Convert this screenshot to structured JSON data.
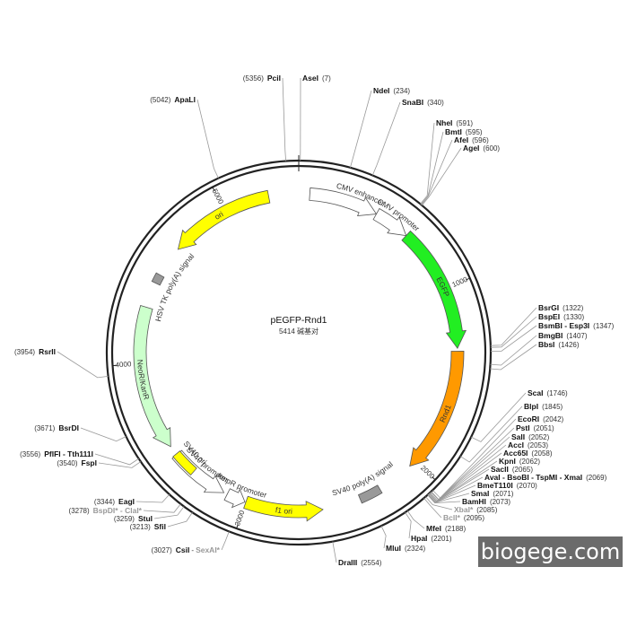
{
  "plasmid": {
    "name": "pEGFP-Rnd1",
    "size_text": "5414 碱基对",
    "total_bp": 5414
  },
  "watermark": "biogege.com",
  "colors": {
    "ori": "#ffff00",
    "egfp": "#22ee22",
    "rnd1": "#ff9900",
    "neo": "#ccffcc",
    "grey_box": "#999999",
    "promoter": "#ffffff",
    "ring": "#222222",
    "dim_site": "#999999"
  },
  "ring_ticks": [
    {
      "label": "1000",
      "bp": 1000
    },
    {
      "label": "2000",
      "bp": 2000
    },
    {
      "label": "3000",
      "bp": 3000
    },
    {
      "label": "4000",
      "bp": 4000
    },
    {
      "label": "5000",
      "bp": 5000
    }
  ],
  "features": [
    {
      "id": "cmv-enhancer",
      "label": "CMV enhancer",
      "start": 60,
      "end": 440,
      "direction": "cw",
      "kind": "open-arrow",
      "color": "#ffffff"
    },
    {
      "id": "cmv-promoter",
      "label": "CMV promoter",
      "start": 440,
      "end": 640,
      "direction": "cw",
      "kind": "open-arrow",
      "color": "#ffffff"
    },
    {
      "id": "egfp",
      "label": "EGFP",
      "start": 640,
      "end": 1330,
      "direction": "cw",
      "kind": "arrow",
      "color": "#22ee22"
    },
    {
      "id": "rnd1",
      "label": "Rnd1",
      "start": 1346,
      "end": 2040,
      "direction": "cw",
      "kind": "arrow",
      "color": "#ff9900"
    },
    {
      "id": "sv40-polya",
      "label": "SV40 poly(A) signal",
      "start": 2245,
      "end": 2365,
      "direction": "none",
      "kind": "box",
      "color": "#999999"
    },
    {
      "id": "f1-ori",
      "label": "f1 ori",
      "start": 2575,
      "end": 3000,
      "direction": "ccw",
      "kind": "arrow",
      "color": "#ffff00"
    },
    {
      "id": "ampr-promoter",
      "label": "AmpR promoter",
      "start": 3005,
      "end": 3110,
      "direction": "ccw",
      "kind": "open-arrow",
      "color": "#ffffff"
    },
    {
      "id": "sv40-promoter",
      "label": "SV40 promoter",
      "start": 3130,
      "end": 3460,
      "direction": "ccw",
      "kind": "open-arrow",
      "color": "#ffffff"
    },
    {
      "id": "sv40-ori",
      "label": "SV40 ori",
      "start": 3330,
      "end": 3465,
      "direction": "none",
      "kind": "box",
      "color": "#ffff00"
    },
    {
      "id": "neor",
      "label": "NeoR/KanR",
      "start": 3515,
      "end": 4310,
      "direction": "ccw",
      "kind": "arrow",
      "color": "#ccffcc"
    },
    {
      "id": "hsv-tk",
      "label": "HSV TK poly(A) signal",
      "start": 4450,
      "end": 4500,
      "direction": "none",
      "kind": "box",
      "color": "#999999"
    },
    {
      "id": "ori",
      "label": "ori",
      "start": 4670,
      "end": 5250,
      "direction": "ccw",
      "kind": "arrow",
      "color": "#ffff00"
    }
  ],
  "sites": [
    {
      "name": "AseI",
      "pos": "(7)",
      "bp": 7
    },
    {
      "name": "NdeI",
      "pos": "(234)",
      "bp": 234
    },
    {
      "name": "SnaBI",
      "pos": "(340)",
      "bp": 340
    },
    {
      "name": "NheI",
      "pos": "(591)",
      "bp": 591
    },
    {
      "name": "BmtI",
      "pos": "(595)",
      "bp": 595
    },
    {
      "name": "AfeI",
      "pos": "(596)",
      "bp": 596
    },
    {
      "name": "AgeI",
      "pos": "(600)",
      "bp": 600
    },
    {
      "name": "BsrGI",
      "pos": "(1322)",
      "bp": 1322
    },
    {
      "name": "BspEI",
      "pos": "(1330)",
      "bp": 1330
    },
    {
      "name": "BsmBI - Esp3I",
      "pos": "(1347)",
      "bp": 1347
    },
    {
      "name": "BmgBI",
      "pos": "(1407)",
      "bp": 1407
    },
    {
      "name": "BbsI",
      "pos": "(1426)",
      "bp": 1426
    },
    {
      "name": "ScaI",
      "pos": "(1746)",
      "bp": 1746
    },
    {
      "name": "BlpI",
      "pos": "(1845)",
      "bp": 1845
    },
    {
      "name": "EcoRI",
      "pos": "(2042)",
      "bp": 2042
    },
    {
      "name": "PstI",
      "pos": "(2051)",
      "bp": 2051
    },
    {
      "name": "SalI",
      "pos": "(2052)",
      "bp": 2052
    },
    {
      "name": "AccI",
      "pos": "(2053)",
      "bp": 2053
    },
    {
      "name": "Acc65I",
      "pos": "(2058)",
      "bp": 2058
    },
    {
      "name": "KpnI",
      "pos": "(2062)",
      "bp": 2062
    },
    {
      "name": "SacII",
      "pos": "(2065)",
      "bp": 2065
    },
    {
      "name": "AvaI - BsoBI - TspMI - XmaI",
      "pos": "(2069)",
      "bp": 2069
    },
    {
      "name": "BmeT110I",
      "pos": "(2070)",
      "bp": 2070
    },
    {
      "name": "SmaI",
      "pos": "(2071)",
      "bp": 2071
    },
    {
      "name": "BamHI",
      "pos": "(2073)",
      "bp": 2073
    },
    {
      "name": "XbaI*",
      "pos": "(2085)",
      "bp": 2085,
      "dim": true
    },
    {
      "name": "BclI*",
      "pos": "(2095)",
      "bp": 2095,
      "dim": true
    },
    {
      "name": "MfeI",
      "pos": "(2188)",
      "bp": 2188
    },
    {
      "name": "HpaI",
      "pos": "(2201)",
      "bp": 2201
    },
    {
      "name": "MluI",
      "pos": "(2324)",
      "bp": 2324
    },
    {
      "name": "DraIII",
      "pos": "(2554)",
      "bp": 2554
    },
    {
      "name": "CsiI",
      "name2": "SexAI*",
      "pos": "(3027)",
      "bp": 3027
    },
    {
      "name": "SfiI",
      "pos": "(3213)",
      "bp": 3213
    },
    {
      "name": "StuI",
      "pos": "(3259)",
      "bp": 3259
    },
    {
      "name": "BspDI* - ClaI*",
      "pos": "(3278)",
      "bp": 3278,
      "dim": true
    },
    {
      "name": "EagI",
      "pos": "(3344)",
      "bp": 3344
    },
    {
      "name": "FspI",
      "pos": "(3540)",
      "bp": 3540
    },
    {
      "name": "PflFI - Tth111I",
      "pos": "(3556)",
      "bp": 3556
    },
    {
      "name": "BsrDI",
      "pos": "(3671)",
      "bp": 3671
    },
    {
      "name": "RsrII",
      "pos": "(3954)",
      "bp": 3954
    },
    {
      "name": "ApaLI",
      "pos": "(5042)",
      "bp": 5042
    },
    {
      "name": "PciI",
      "pos": "(5356)",
      "bp": 5356
    }
  ]
}
